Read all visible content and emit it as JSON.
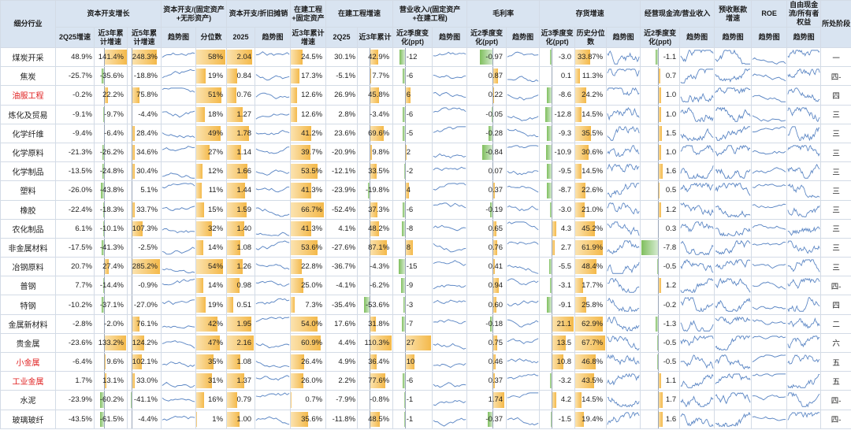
{
  "headers": {
    "industry": "细分行业",
    "capex_group": "资本开支增长",
    "capex_q": "2Q25增速",
    "capex_3y": "近3年累计增速",
    "capex_5y": "近5年累计增速",
    "ratio_group": "资本开支/(固定资产+无形资产)",
    "trend": "趋势图",
    "pct": "分位数",
    "dep_group": "资本开支/折旧摊销",
    "y2025": "2025",
    "cip_group": "在建工程+固定资产",
    "cip3": "近3年累计增速",
    "cipg_group": "在建工程增速",
    "cipg_q": "2Q25",
    "cipg_3y": "近3年累计",
    "rev_group": "营业收入/(固定资产+在建工程)",
    "rev_chg": "近2季度变化(ppt)",
    "gm_group": "毛利率",
    "gm_chg": "近2季度变化(ppt)",
    "inv_group": "存货增速",
    "inv_chg": "近3季度变化(ppt)",
    "inv_pct": "历史分位数",
    "ocf_group": "经营现金流/营业收入",
    "ocf_chg": "近2季度变化(ppt)",
    "adv_group": "预收账款增速",
    "roe_group": "ROE",
    "fcf_group": "自由现金流/所有者权益",
    "stage": "所处阶段"
  },
  "rows": [
    {
      "industry": "煤炭开采",
      "red": false,
      "capex_q": "48.9%",
      "capex_3y": "141.4%",
      "capex_5y": "248.3%",
      "pct": "58%",
      "dep": "2.04",
      "cip3": "24.5%",
      "cipg_q": "30.1%",
      "cipg_3y": "42.9%",
      "rev": "-12",
      "gm": "-0.97",
      "inv": "-3.0",
      "inv_pct": "33.87%",
      "ocf": "-1.1",
      "stage": "一"
    },
    {
      "industry": "焦炭",
      "red": false,
      "capex_q": "-25.7%",
      "capex_3y": "-35.6%",
      "capex_5y": "-18.8%",
      "pct": "19%",
      "dep": "0.84",
      "cip3": "17.3%",
      "cipg_q": "-5.1%",
      "cipg_3y": "7.7%",
      "rev": "-6",
      "gm": "0.87",
      "inv": "0.1",
      "inv_pct": "11.3%",
      "ocf": "0.7",
      "stage": "四-"
    },
    {
      "industry": "油服工程",
      "red": true,
      "capex_q": "-0.2%",
      "capex_3y": "22.2%",
      "capex_5y": "75.8%",
      "pct": "51%",
      "dep": "0.76",
      "cip3": "12.6%",
      "cipg_q": "26.9%",
      "cipg_3y": "45.8%",
      "rev": "6",
      "gm": "0.22",
      "inv": "-8.6",
      "inv_pct": "24.2%",
      "ocf": "1.0",
      "stage": "四"
    },
    {
      "industry": "炼化及贸易",
      "red": false,
      "capex_q": "-9.1%",
      "capex_3y": "-9.7%",
      "capex_5y": "-4.4%",
      "pct": "18%",
      "dep": "1.27",
      "cip3": "12.6%",
      "cipg_q": "2.8%",
      "cipg_3y": "-3.4%",
      "rev": "-6",
      "gm": "-0.05",
      "inv": "-12.8",
      "inv_pct": "14.5%",
      "ocf": "1.0",
      "stage": "三"
    },
    {
      "industry": "化学纤维",
      "red": false,
      "capex_q": "-9.4%",
      "capex_3y": "-6.4%",
      "capex_5y": "28.4%",
      "pct": "49%",
      "dep": "1.78",
      "cip3": "41.2%",
      "cipg_q": "23.6%",
      "cipg_3y": "69.6%",
      "rev": "-5",
      "gm": "-0.28",
      "inv": "-9.3",
      "inv_pct": "35.5%",
      "ocf": "1.5",
      "stage": "三"
    },
    {
      "industry": "化学原料",
      "red": false,
      "capex_q": "-21.3%",
      "capex_3y": "-26.2%",
      "capex_5y": "34.6%",
      "pct": "27%",
      "dep": "1.14",
      "cip3": "39.7%",
      "cipg_q": "-20.9%",
      "cipg_3y": "9.8%",
      "rev": "2",
      "gm": "-0.84",
      "inv": "-10.9",
      "inv_pct": "30.6%",
      "ocf": "1.0",
      "stage": "三"
    },
    {
      "industry": "化学制品",
      "red": false,
      "capex_q": "-13.5%",
      "capex_3y": "-24.8%",
      "capex_5y": "30.4%",
      "pct": "12%",
      "dep": "1.66",
      "cip3": "53.5%",
      "cipg_q": "-12.1%",
      "cipg_3y": "33.5%",
      "rev": "-2",
      "gm": "0.07",
      "inv": "-9.5",
      "inv_pct": "14.5%",
      "ocf": "1.6",
      "stage": "三"
    },
    {
      "industry": "塑料",
      "red": false,
      "capex_q": "-26.0%",
      "capex_3y": "-43.8%",
      "capex_5y": "5.1%",
      "pct": "11%",
      "dep": "1.44",
      "cip3": "41.3%",
      "cipg_q": "-23.9%",
      "cipg_3y": "-19.8%",
      "rev": "4",
      "gm": "0.37",
      "inv": "-8.7",
      "inv_pct": "22.6%",
      "ocf": "0.5",
      "stage": "三"
    },
    {
      "industry": "橡胶",
      "red": false,
      "capex_q": "-22.4%",
      "capex_3y": "-18.3%",
      "capex_5y": "33.7%",
      "pct": "15%",
      "dep": "1.59",
      "cip3": "66.7%",
      "cipg_q": "-52.4%",
      "cipg_3y": "37.3%",
      "rev": "-6",
      "gm": "-0.19",
      "inv": "-3.0",
      "inv_pct": "21.0%",
      "ocf": "1.2",
      "stage": "三"
    },
    {
      "industry": "农化制品",
      "red": false,
      "capex_q": "6.1%",
      "capex_3y": "-10.1%",
      "capex_5y": "107.3%",
      "pct": "32%",
      "dep": "1.40",
      "cip3": "41.3%",
      "cipg_q": "4.1%",
      "cipg_3y": "48.2%",
      "rev": "-8",
      "gm": "0.65",
      "inv": "4.3",
      "inv_pct": "45.2%",
      "ocf": "0.3",
      "stage": "三"
    },
    {
      "industry": "非金属材料",
      "red": false,
      "capex_q": "-17.5%",
      "capex_3y": "-41.3%",
      "capex_5y": "-2.5%",
      "pct": "14%",
      "dep": "1.08",
      "cip3": "53.6%",
      "cipg_q": "-27.6%",
      "cipg_3y": "87.1%",
      "rev": "8",
      "gm": "0.76",
      "inv": "2.7",
      "inv_pct": "61.9%",
      "ocf": "-7.8",
      "stage": "三"
    },
    {
      "industry": "冶钢原料",
      "red": false,
      "capex_q": "20.7%",
      "capex_3y": "27.4%",
      "capex_5y": "285.2%",
      "pct": "54%",
      "dep": "1.26",
      "cip3": "22.8%",
      "cipg_q": "-36.7%",
      "cipg_3y": "-4.3%",
      "rev": "-15",
      "gm": "0.41",
      "inv": "-5.5",
      "inv_pct": "48.4%",
      "ocf": "-0.5",
      "stage": "三"
    },
    {
      "industry": "普钢",
      "red": false,
      "capex_q": "7.7%",
      "capex_3y": "-14.4%",
      "capex_5y": "-0.9%",
      "pct": "14%",
      "dep": "0.98",
      "cip3": "25.0%",
      "cipg_q": "-4.1%",
      "cipg_3y": "-6.2%",
      "rev": "-9",
      "gm": "0.94",
      "inv": "-3.1",
      "inv_pct": "17.7%",
      "ocf": "1.2",
      "stage": "四-"
    },
    {
      "industry": "特钢",
      "red": false,
      "capex_q": "-10.2%",
      "capex_3y": "-37.1%",
      "capex_5y": "-27.0%",
      "pct": "19%",
      "dep": "0.51",
      "cip3": "7.3%",
      "cipg_q": "-35.4%",
      "cipg_3y": "-53.6%",
      "rev": "-3",
      "gm": "0.60",
      "inv": "-9.1",
      "inv_pct": "25.8%",
      "ocf": "-0.2",
      "stage": "四"
    },
    {
      "industry": "金属新材料",
      "red": false,
      "capex_q": "-2.8%",
      "capex_3y": "-2.0%",
      "capex_5y": "76.1%",
      "pct": "42%",
      "dep": "1.95",
      "cip3": "54.0%",
      "cipg_q": "17.6%",
      "cipg_3y": "31.8%",
      "rev": "-7",
      "gm": "-0.18",
      "inv": "21.1",
      "inv_pct": "62.9%",
      "ocf": "-1.3",
      "stage": "二"
    },
    {
      "industry": "贵金属",
      "red": false,
      "capex_q": "-23.6%",
      "capex_3y": "133.2%",
      "capex_5y": "124.2%",
      "pct": "47%",
      "dep": "2.16",
      "cip3": "60.9%",
      "cipg_q": "4.4%",
      "cipg_3y": "110.3%",
      "rev": "27",
      "gm": "0.75",
      "inv": "13.5",
      "inv_pct": "67.7%",
      "ocf": "-0.5",
      "stage": "六"
    },
    {
      "industry": "小金属",
      "red": true,
      "capex_q": "-6.4%",
      "capex_3y": "9.6%",
      "capex_5y": "102.1%",
      "pct": "35%",
      "dep": "1.08",
      "cip3": "26.4%",
      "cipg_q": "4.9%",
      "cipg_3y": "36.4%",
      "rev": "10",
      "gm": "0.46",
      "inv": "10.8",
      "inv_pct": "46.8%",
      "ocf": "-0.5",
      "stage": "五"
    },
    {
      "industry": "工业金属",
      "red": true,
      "capex_q": "1.7%",
      "capex_3y": "13.1%",
      "capex_5y": "33.0%",
      "pct": "31%",
      "dep": "1.37",
      "cip3": "26.0%",
      "cipg_q": "2.2%",
      "cipg_3y": "77.6%",
      "rev": "-6",
      "gm": "0.37",
      "inv": "-3.2",
      "inv_pct": "43.5%",
      "ocf": "1.1",
      "stage": "五"
    },
    {
      "industry": "水泥",
      "red": false,
      "capex_q": "-23.9%",
      "capex_3y": "-60.2%",
      "capex_5y": "-41.1%",
      "pct": "16%",
      "dep": "0.79",
      "cip3": "0.7%",
      "cipg_q": "-7.9%",
      "cipg_3y": "-0.8%",
      "rev": "-1",
      "gm": "1.74",
      "inv": "4.2",
      "inv_pct": "14.5%",
      "ocf": "1.7",
      "stage": "四-"
    },
    {
      "industry": "玻璃玻纤",
      "red": false,
      "capex_q": "-43.5%",
      "capex_3y": "-61.5%",
      "capex_5y": "-4.4%",
      "pct": "1%",
      "dep": "1.00",
      "cip3": "35.6%",
      "cipg_q": "-11.8%",
      "cipg_3y": "48.5%",
      "rev": "-1",
      "gm": "-0.37",
      "inv": "-1.5",
      "inv_pct": "19.4%",
      "ocf": "1.6",
      "stage": "四-"
    }
  ]
}
